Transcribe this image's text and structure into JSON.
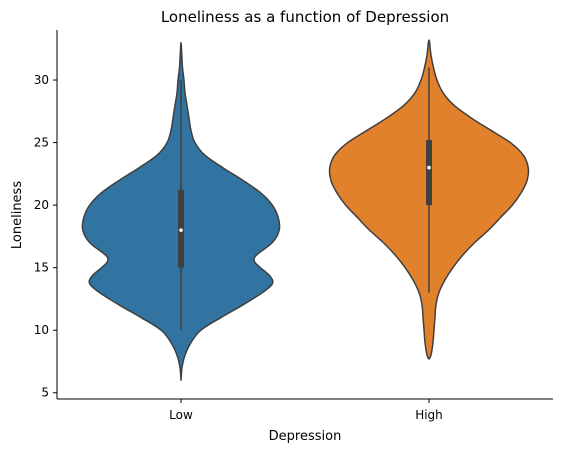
{
  "chart_data": {
    "type": "violin",
    "title": "Loneliness as a function of Depression",
    "xlabel": "Depression",
    "ylabel": "Loneliness",
    "categories": [
      "Low",
      "High"
    ],
    "ylim": [
      4.5,
      34
    ],
    "yticks": [
      5,
      10,
      15,
      20,
      25,
      30
    ],
    "grid": false,
    "series": [
      {
        "category": "Low",
        "color": "#3274a1",
        "min": 6,
        "max": 33,
        "q1": 15,
        "median": 18,
        "q3": 21.2,
        "whisker_low": 10,
        "whisker_high": 30,
        "density": [
          [
            6,
            0.0
          ],
          [
            7,
            0.01
          ],
          [
            8,
            0.04
          ],
          [
            9,
            0.1
          ],
          [
            10,
            0.2
          ],
          [
            11,
            0.4
          ],
          [
            12,
            0.62
          ],
          [
            13,
            0.82
          ],
          [
            13.7,
            0.92
          ],
          [
            14.3,
            0.9
          ],
          [
            15,
            0.8
          ],
          [
            15.5,
            0.74
          ],
          [
            16,
            0.76
          ],
          [
            17,
            0.92
          ],
          [
            18,
            0.99
          ],
          [
            19,
            0.98
          ],
          [
            20,
            0.92
          ],
          [
            21,
            0.8
          ],
          [
            22,
            0.62
          ],
          [
            23,
            0.42
          ],
          [
            24,
            0.24
          ],
          [
            25,
            0.14
          ],
          [
            26,
            0.1
          ],
          [
            27,
            0.08
          ],
          [
            28,
            0.06
          ],
          [
            29,
            0.04
          ],
          [
            30,
            0.03
          ],
          [
            31,
            0.015
          ],
          [
            32,
            0.008
          ],
          [
            33,
            0.0
          ]
        ]
      },
      {
        "category": "High",
        "color": "#e1812c",
        "min": 7.7,
        "max": 33.2,
        "q1": 20,
        "median": 23,
        "q3": 25.2,
        "whisker_low": 13,
        "whisker_high": 31,
        "density": [
          [
            7.7,
            0.0
          ],
          [
            8,
            0.02
          ],
          [
            9,
            0.04
          ],
          [
            10,
            0.05
          ],
          [
            11,
            0.06
          ],
          [
            12,
            0.07
          ],
          [
            13,
            0.1
          ],
          [
            14,
            0.16
          ],
          [
            15,
            0.24
          ],
          [
            16,
            0.34
          ],
          [
            17,
            0.46
          ],
          [
            18,
            0.6
          ],
          [
            19,
            0.72
          ],
          [
            20,
            0.84
          ],
          [
            21,
            0.93
          ],
          [
            22,
            0.99
          ],
          [
            23,
            1.0
          ],
          [
            24,
            0.95
          ],
          [
            25,
            0.82
          ],
          [
            26,
            0.62
          ],
          [
            27,
            0.42
          ],
          [
            28,
            0.25
          ],
          [
            29,
            0.14
          ],
          [
            30,
            0.08
          ],
          [
            31,
            0.045
          ],
          [
            32,
            0.02
          ],
          [
            33.2,
            0.0
          ]
        ]
      }
    ]
  }
}
